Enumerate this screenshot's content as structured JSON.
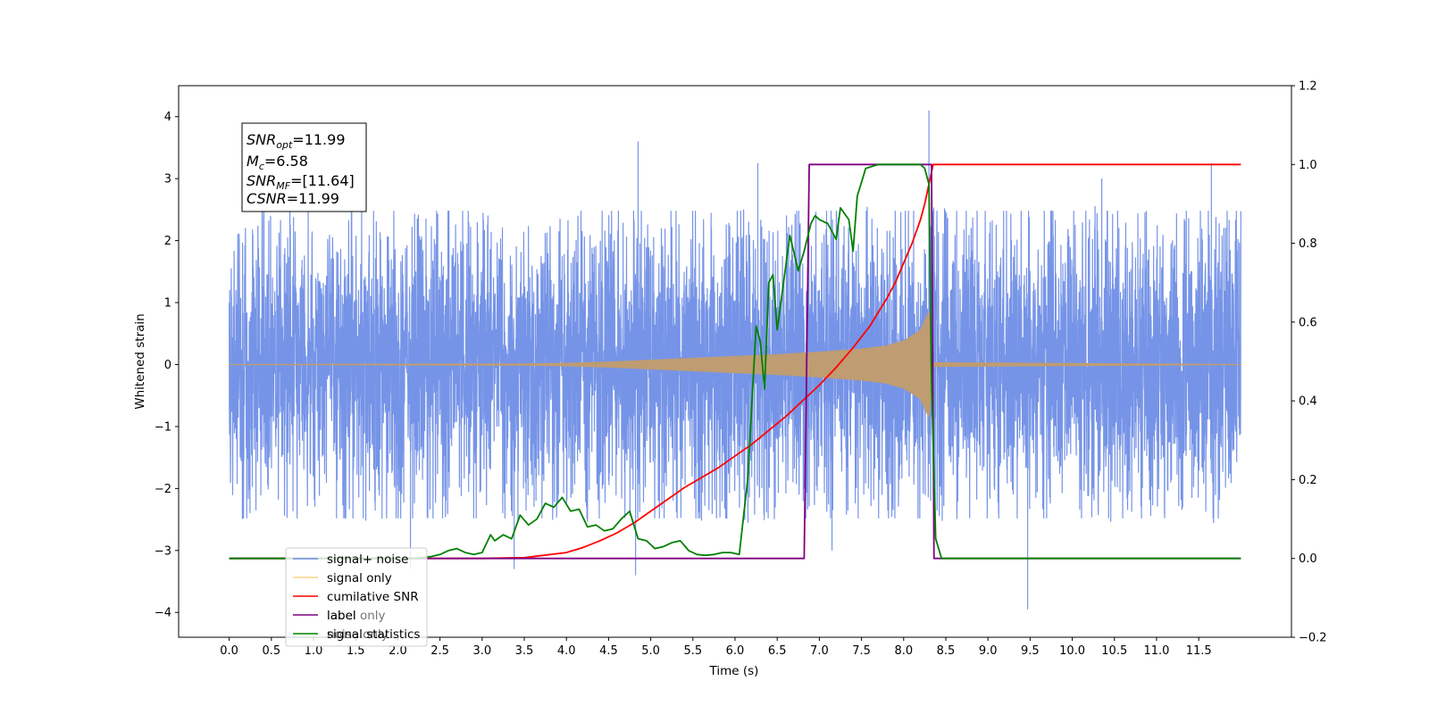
{
  "chart_data": {
    "type": "line",
    "xlabel": "Time (s)",
    "ylabel": "Whitened strain",
    "y2label": "",
    "xlim": [
      -0.6,
      12.6
    ],
    "ylim": [
      -4.4,
      4.5
    ],
    "y2lim": [
      -0.2,
      1.2
    ],
    "xticks": [
      "0.0",
      "0.5",
      "1.0",
      "1.5",
      "2.0",
      "2.5",
      "3.0",
      "3.5",
      "4.0",
      "4.5",
      "5.0",
      "5.5",
      "6.0",
      "6.5",
      "7.0",
      "7.5",
      "8.0",
      "8.5",
      "9.0",
      "9.5",
      "10.0",
      "10.5",
      "11.0",
      "11.5"
    ],
    "yticks": [
      "−4",
      "−3",
      "−2",
      "−1",
      "0",
      "1",
      "2",
      "3",
      "4"
    ],
    "y2ticks": [
      "−0.2",
      "0.0",
      "0.2",
      "0.4",
      "0.6",
      "0.8",
      "1.0",
      "1.2"
    ],
    "colors": {
      "signal_noise": "#6f8ee6",
      "signal_only": "#bf9c72",
      "cumulative_snr": "#ff0000",
      "label": "#800080",
      "signal_statistics": "#008000"
    },
    "annotation": {
      "snr_opt_base": "SNR",
      "snr_opt_sub": "opt",
      "snr_opt_value": "=11.99",
      "mc_base": "M",
      "mc_sub": "c",
      "mc_value": "=6.58",
      "snr_mf_base": "SNR",
      "snr_mf_sub": "MF",
      "snr_mf_value": "=[11.64]",
      "csnr_base": "CSNR",
      "csnr_value": "=11.99"
    },
    "legend": {
      "placement": "lower-left",
      "entries": [
        "signal+ noise",
        "signal only",
        "cumilative SNR",
        "label",
        "signal statistics"
      ],
      "hidden_text_1": "label only",
      "hidden_text_2": "noise only"
    },
    "series": [
      {
        "name": "signal+ noise",
        "axis": "left",
        "kind": "noise",
        "x_range": [
          0.0,
          12.0
        ],
        "typical_amplitude": [
          -1.5,
          1.5
        ],
        "spikes": [
          {
            "x": 4.85,
            "y": 3.6
          },
          {
            "x": 8.3,
            "y": 4.1
          },
          {
            "x": 9.47,
            "y": -3.95
          },
          {
            "x": 4.82,
            "y": -3.4
          },
          {
            "x": 3.38,
            "y": -3.3
          },
          {
            "x": 0.72,
            "y": 3.1
          },
          {
            "x": 11.65,
            "y": 3.25
          },
          {
            "x": 6.27,
            "y": 3.25
          },
          {
            "x": 10.35,
            "y": 3.0
          },
          {
            "x": 7.15,
            "y": -3.0
          },
          {
            "x": 2.15,
            "y": -3.3
          }
        ]
      },
      {
        "name": "signal only",
        "axis": "left",
        "kind": "chirp_envelope",
        "x": [
          0.0,
          3.5,
          4.0,
          4.5,
          5.0,
          5.5,
          6.0,
          6.5,
          7.0,
          7.5,
          7.8,
          8.0,
          8.2,
          8.3,
          8.35,
          12.0
        ],
        "envelope": [
          0.0,
          0.01,
          0.02,
          0.04,
          0.07,
          0.1,
          0.13,
          0.16,
          0.2,
          0.25,
          0.3,
          0.38,
          0.55,
          0.85,
          0.03,
          0.0
        ]
      },
      {
        "name": "cumilative SNR",
        "axis": "right",
        "x": [
          0.0,
          3.0,
          3.5,
          4.0,
          4.2,
          4.4,
          4.6,
          4.8,
          5.0,
          5.2,
          5.4,
          5.6,
          5.8,
          6.0,
          6.2,
          6.4,
          6.6,
          6.8,
          7.0,
          7.2,
          7.4,
          7.6,
          7.8,
          7.9,
          8.0,
          8.1,
          8.2,
          8.25,
          8.3,
          8.35,
          12.0
        ],
        "values": [
          0.0,
          0.0,
          0.002,
          0.015,
          0.028,
          0.045,
          0.065,
          0.09,
          0.12,
          0.15,
          0.18,
          0.205,
          0.23,
          0.26,
          0.29,
          0.325,
          0.36,
          0.4,
          0.44,
          0.485,
          0.535,
          0.59,
          0.66,
          0.7,
          0.75,
          0.8,
          0.86,
          0.9,
          0.95,
          1.0,
          1.0
        ]
      },
      {
        "name": "label",
        "axis": "right",
        "x": [
          0.0,
          6.82,
          6.88,
          8.33,
          8.36,
          12.0
        ],
        "values": [
          0.0,
          0.0,
          1.0,
          1.0,
          0.0,
          0.0
        ]
      },
      {
        "name": "signal statistics",
        "axis": "right",
        "x": [
          0.0,
          2.2,
          2.4,
          2.5,
          2.6,
          2.7,
          2.8,
          2.9,
          3.0,
          3.1,
          3.15,
          3.25,
          3.35,
          3.45,
          3.55,
          3.65,
          3.75,
          3.85,
          3.95,
          4.05,
          4.15,
          4.25,
          4.35,
          4.45,
          4.55,
          4.65,
          4.75,
          4.85,
          4.95,
          5.05,
          5.15,
          5.25,
          5.35,
          5.45,
          5.55,
          5.65,
          5.75,
          5.85,
          5.95,
          6.05,
          6.15,
          6.25,
          6.3,
          6.35,
          6.4,
          6.45,
          6.5,
          6.55,
          6.65,
          6.75,
          6.82,
          6.9,
          6.95,
          7.0,
          7.1,
          7.2,
          7.25,
          7.35,
          7.4,
          7.45,
          7.55,
          7.7,
          8.0,
          8.2,
          8.25,
          8.3,
          8.33,
          8.38,
          8.45,
          12.0
        ],
        "values": [
          0.0,
          0.0,
          0.005,
          0.01,
          0.02,
          0.025,
          0.015,
          0.01,
          0.015,
          0.06,
          0.045,
          0.06,
          0.05,
          0.11,
          0.085,
          0.1,
          0.14,
          0.13,
          0.155,
          0.12,
          0.125,
          0.08,
          0.085,
          0.07,
          0.075,
          0.1,
          0.12,
          0.05,
          0.045,
          0.025,
          0.03,
          0.04,
          0.045,
          0.02,
          0.01,
          0.008,
          0.01,
          0.015,
          0.015,
          0.01,
          0.2,
          0.59,
          0.55,
          0.43,
          0.7,
          0.72,
          0.58,
          0.66,
          0.82,
          0.73,
          0.78,
          0.85,
          0.87,
          0.86,
          0.85,
          0.81,
          0.89,
          0.86,
          0.78,
          0.92,
          0.99,
          1.0,
          1.0,
          1.0,
          0.99,
          0.95,
          0.45,
          0.05,
          0.0,
          0.0
        ]
      }
    ]
  }
}
